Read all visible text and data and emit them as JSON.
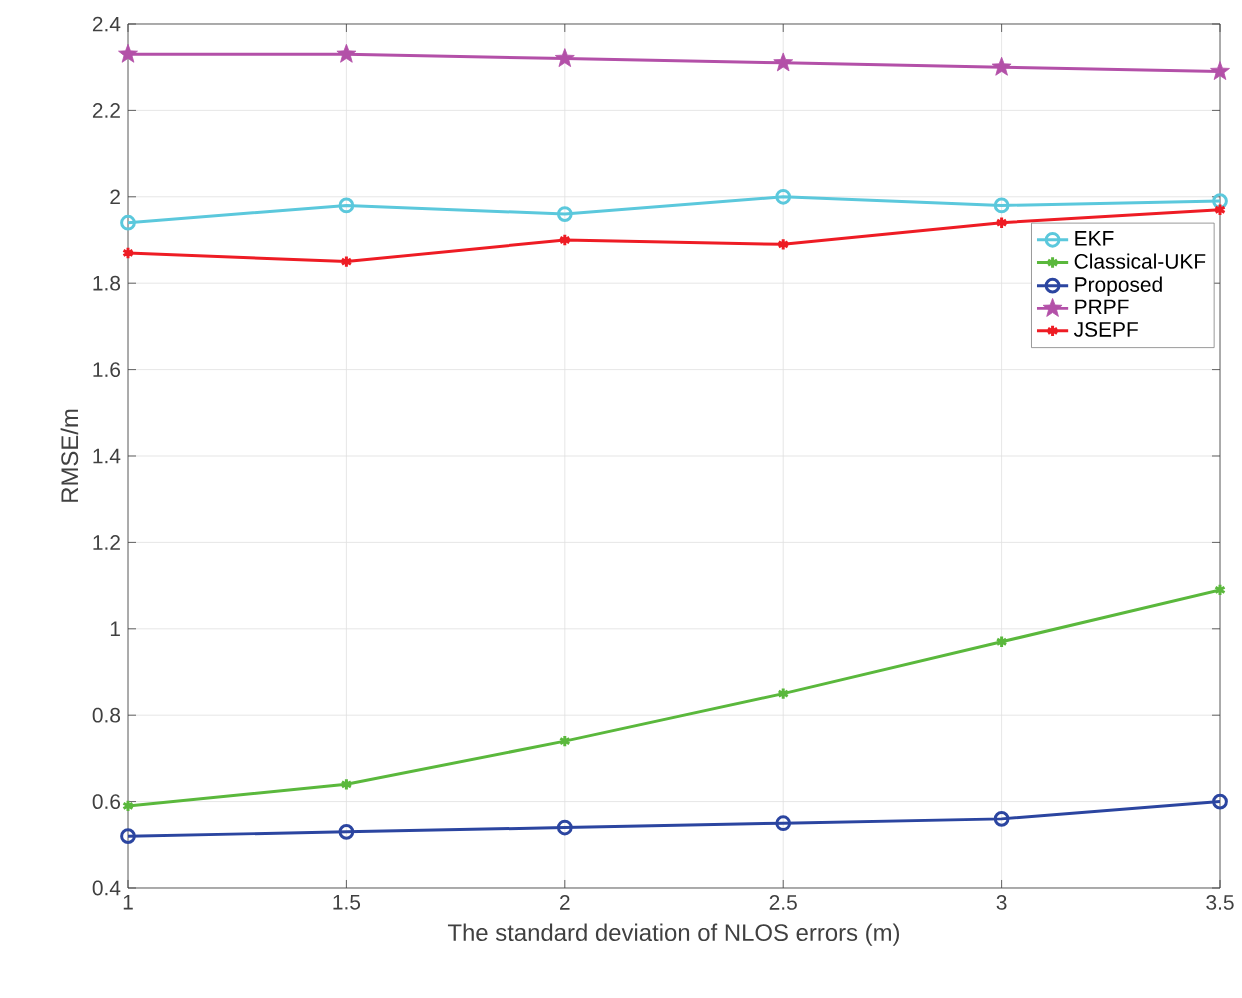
{
  "chart_data": {
    "type": "line",
    "xlabel": "The standard deviation of NLOS errors (m)",
    "ylabel": "RMSE/m",
    "x": [
      1,
      1.5,
      2,
      2.5,
      3,
      3.5
    ],
    "series": [
      {
        "name": "EKF",
        "color": "#5bc8dc",
        "marker": "circle",
        "values": [
          1.94,
          1.98,
          1.96,
          2.0,
          1.98,
          1.99
        ]
      },
      {
        "name": "Classical-UKF",
        "color": "#5ab83c",
        "marker": "cross",
        "values": [
          0.59,
          0.64,
          0.74,
          0.85,
          0.97,
          1.09
        ]
      },
      {
        "name": "Proposed",
        "color": "#2b45a0",
        "marker": "circle",
        "values": [
          0.52,
          0.53,
          0.54,
          0.55,
          0.56,
          0.6
        ]
      },
      {
        "name": "PRPF",
        "color": "#b350a8",
        "marker": "star",
        "values": [
          2.33,
          2.33,
          2.32,
          2.31,
          2.3,
          2.29
        ]
      },
      {
        "name": "JSEPF",
        "color": "#ee1c24",
        "marker": "cross",
        "values": [
          1.87,
          1.85,
          1.9,
          1.89,
          1.94,
          1.97
        ]
      }
    ],
    "xlim": [
      1,
      3.5
    ],
    "ylim": [
      0.4,
      2.4
    ],
    "xticks": [
      1,
      1.5,
      2,
      2.5,
      3,
      3.5
    ],
    "yticks": [
      0.4,
      0.6,
      0.8,
      1,
      1.2,
      1.4,
      1.6,
      1.8,
      2,
      2.2,
      2.4
    ],
    "grid": true,
    "legend": "right",
    "line_style": "solid"
  }
}
